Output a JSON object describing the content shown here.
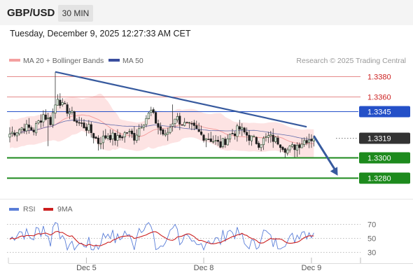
{
  "header": {
    "symbol": "GBP/USD",
    "timeframe": "30 MIN"
  },
  "datetime": "Tuesday, December 9, 2025 12:27:33 AM CET",
  "legend": {
    "ma_bb": "MA 20 + Bollinger Bands",
    "ma50": "MA 50",
    "credit": "Research © 2025 Trading Central"
  },
  "rsi_legend": {
    "rsi": "RSI",
    "ma9": "9MA"
  },
  "colors": {
    "bb_fill": "#fde3e3",
    "ma20": "#f4a0a0",
    "ma50": "#3a4e9e",
    "trend": "#375a9e",
    "resistance": "#e58a8a",
    "pivot": "#2450c8",
    "support": "#1d8a1d",
    "current": "#333333",
    "candle_up": "#2f4f2f",
    "candle_down": "#1e1e1e",
    "rsi": "#5a7ed8",
    "rsi_ma": "#cc1f1f"
  },
  "chart_data": {
    "type": "candlestick",
    "price_range": [
      1.3262,
      1.3412
    ],
    "levels": [
      {
        "value": 1.338,
        "label": "1.3380",
        "kind": "resistance"
      },
      {
        "value": 1.336,
        "label": "1.3360",
        "kind": "resistance"
      },
      {
        "value": 1.3345,
        "label": "1.3345",
        "kind": "pivot"
      },
      {
        "value": 1.3319,
        "label": "1.3319",
        "kind": "current"
      },
      {
        "value": 1.33,
        "label": "1.3300",
        "kind": "support"
      },
      {
        "value": 1.328,
        "label": "1.3280",
        "kind": "support"
      }
    ],
    "x_ticks": [
      {
        "index": 32,
        "label": "Dec 5"
      },
      {
        "index": 81,
        "label": "Dec 8"
      },
      {
        "index": 126,
        "label": "Dec 9"
      }
    ],
    "trendline": {
      "from": {
        "index": 19,
        "price": 1.3384
      },
      "to": {
        "index": 124,
        "price": 1.333
      }
    },
    "forecast_arrow": {
      "from": {
        "index": 127,
        "price": 1.3321
      },
      "to": {
        "index": 137,
        "price": 1.3282
      }
    },
    "candles_count": 128,
    "rsi_levels": [
      70,
      50,
      30
    ],
    "rsi_range": [
      20,
      80
    ]
  }
}
